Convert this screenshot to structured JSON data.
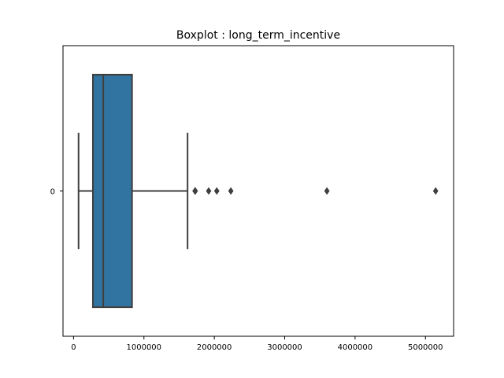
{
  "chart_data": {
    "type": "boxplot",
    "orientation": "horizontal",
    "title": "Boxplot : long_term_incentive",
    "xlabel": "",
    "ylabel": "",
    "xlim": [
      -150000,
      5400000
    ],
    "x_ticks": [
      0,
      1000000,
      2000000,
      3000000,
      4000000,
      5000000
    ],
    "x_tick_labels": [
      "0",
      "1000000",
      "2000000",
      "3000000",
      "4000000",
      "5000000"
    ],
    "categories": [
      "0"
    ],
    "boxes": [
      {
        "category": "0",
        "whisker_low": 71000,
        "q1": 275000,
        "median": 422000,
        "q3": 831000,
        "whisker_high": 1620000,
        "outliers": [
          1725000,
          1730000,
          1920000,
          2035000,
          2235000,
          3600000,
          5145000
        ]
      }
    ],
    "box_color": "#3274a1",
    "line_color": "#3f3f3f"
  }
}
